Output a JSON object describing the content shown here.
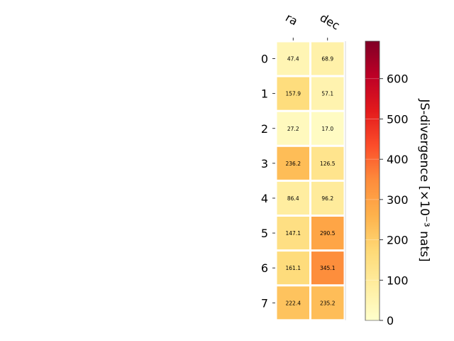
{
  "chart_data": {
    "type": "heatmap",
    "columns": [
      "ra",
      "dec"
    ],
    "rows": [
      "0",
      "1",
      "2",
      "3",
      "4",
      "5",
      "6",
      "7"
    ],
    "values": [
      [
        47.4,
        68.9
      ],
      [
        157.9,
        57.1
      ],
      [
        27.2,
        17.0
      ],
      [
        236.2,
        126.5
      ],
      [
        86.4,
        96.2
      ],
      [
        147.1,
        290.5
      ],
      [
        161.1,
        345.1
      ],
      [
        222.4,
        235.2
      ]
    ],
    "value_labels": [
      [
        "47.4",
        "68.9"
      ],
      [
        "157.9",
        "57.1"
      ],
      [
        "27.2",
        "17.0"
      ],
      [
        "236.2",
        "126.5"
      ],
      [
        "86.4",
        "96.2"
      ],
      [
        "147.1",
        "290.5"
      ],
      [
        "161.1",
        "345.1"
      ],
      [
        "222.4",
        "235.2"
      ]
    ],
    "colorbar": {
      "label": "JS-divergence [×10⁻³ nats]",
      "range": [
        0,
        693
      ],
      "ticks": [
        0,
        100,
        200,
        300,
        400,
        500,
        600
      ],
      "tick_labels": [
        "0",
        "100",
        "200",
        "300",
        "400",
        "500",
        "600"
      ],
      "colormap": "YlOrRd"
    },
    "grid": false,
    "colors": {
      "light_text": "#ffffff",
      "dark_text": "#000000",
      "cell_border": "#ffffff"
    }
  }
}
